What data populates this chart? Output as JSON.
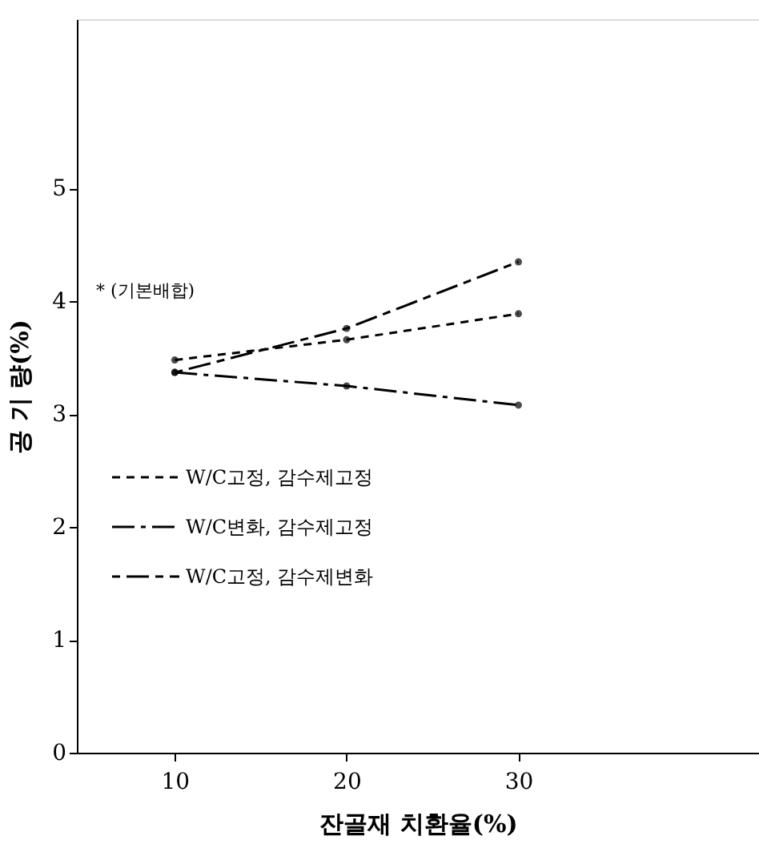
{
  "chart_data": {
    "type": "line",
    "xlabel": "잔골재 치환율(%)",
    "ylabel": "공 기 량(%)",
    "x": [
      10,
      20,
      30
    ],
    "series": [
      {
        "name": "W/C고정, 감수제고정",
        "color": "#000000",
        "line_style": "dashed",
        "values": [
          3.48,
          3.66,
          3.89
        ]
      },
      {
        "name": "W/C변화, 감수제고정",
        "color": "#000000",
        "line_style": "dashed",
        "values": [
          3.37,
          3.25,
          3.08
        ]
      },
      {
        "name": "W/C고정, 감수제변화",
        "color": "#000000",
        "line_style": "dashed",
        "values": [
          3.37,
          3.76,
          4.35
        ]
      }
    ],
    "xlim": [
      4.3,
      44
    ],
    "xticks": [
      10,
      20,
      30
    ],
    "ylim": [
      0,
      6.5
    ],
    "yticks": [
      0,
      1,
      2,
      3,
      4,
      5
    ],
    "annotations": [
      "* (기본배합)"
    ],
    "marker": "circle",
    "grid": false,
    "legend": "left"
  }
}
